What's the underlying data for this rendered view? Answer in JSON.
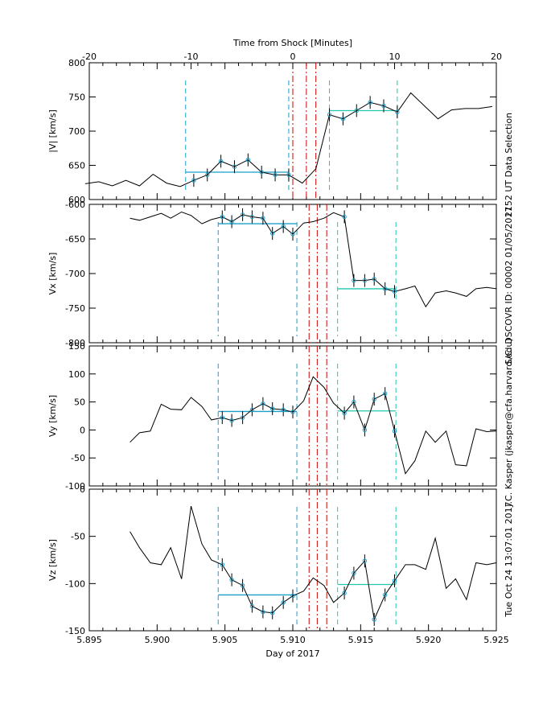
{
  "top_axis": {
    "label": "Time from Shock [Minutes]",
    "ticks": [
      -20,
      -10,
      0,
      10,
      20
    ]
  },
  "bottom_axis": {
    "label": "Day of 2017",
    "ticks": [
      "5.895",
      "5.900",
      "5.905",
      "5.910",
      "5.915",
      "5.920",
      "5.925"
    ]
  },
  "side_text": [
    "2152 UT Data Selection",
    "S/C: DSCOVR ID: 00002 01/05/2017",
    "J.C. Kasper (jkasper@cfa.harvard.edu)",
    "Tue Oct 24 13:07:01 2017"
  ],
  "colors": {
    "trace": "#000000",
    "fit_points": "#1a9fc8",
    "upstream_window": "#1a9fc8",
    "downstream_window": "#20c8b0",
    "shock_lines": "#cc0000"
  },
  "chart_data": [
    {
      "type": "line",
      "ylabel": "|V| [km/s]",
      "ylim": [
        600,
        800
      ],
      "yticks": [
        600,
        650,
        700,
        750,
        800
      ],
      "x": [
        5.8947,
        5.8957,
        5.8967,
        5.8977,
        5.8987,
        5.8997,
        5.9007,
        5.9017,
        5.9027,
        5.9037,
        5.9047,
        5.9057,
        5.9067,
        5.9077,
        5.9087,
        5.9097,
        5.9107,
        5.9117,
        5.9127,
        5.9137,
        5.9147,
        5.9157,
        5.9167,
        5.9177,
        5.9187,
        5.9197,
        5.9207,
        5.9217,
        5.9227,
        5.9237,
        5.9247
      ],
      "values": [
        623,
        626,
        620,
        628,
        620,
        637,
        624,
        619,
        628,
        636,
        656,
        648,
        658,
        640,
        636,
        636,
        624,
        645,
        724,
        718,
        730,
        742,
        737,
        728,
        756,
        737,
        718,
        731,
        733,
        733,
        736
      ],
      "shock_lines_x": [
        5.91,
        5.911,
        5.9117
      ],
      "upstream_window": {
        "x_start": 5.9021,
        "x_end": 5.9097,
        "mean": 640
      },
      "downstream_window": {
        "x_start": 5.9127,
        "x_end": 5.9177,
        "mean": 730
      }
    },
    {
      "type": "line",
      "ylabel": "Vx [km/s]",
      "ylim": [
        -800,
        -600
      ],
      "yticks": [
        -800,
        -750,
        -700,
        -650,
        -600
      ],
      "x": [
        5.898,
        5.8987,
        5.8995,
        5.9003,
        5.901,
        5.9018,
        5.9025,
        5.9033,
        5.904,
        5.9048,
        5.9055,
        5.9063,
        5.907,
        5.9078,
        5.9085,
        5.9093,
        5.91,
        5.9108,
        5.9115,
        5.9123,
        5.913,
        5.9138,
        5.9145,
        5.9153,
        5.916,
        5.9168,
        5.9175,
        5.9183,
        5.919,
        5.9198,
        5.9205,
        5.9213,
        5.922,
        5.9228,
        5.9235,
        5.9243,
        5.925
      ],
      "values": [
        -620,
        -623,
        -618,
        -613,
        -620,
        -611,
        -616,
        -628,
        -622,
        -618,
        -625,
        -615,
        -618,
        -620,
        -642,
        -632,
        -643,
        -627,
        -625,
        -620,
        -612,
        -618,
        -710,
        -710,
        -708,
        -722,
        -726,
        -722,
        -718,
        -748,
        -728,
        -725,
        -728,
        -733,
        -722,
        -720,
        -722
      ],
      "shock_lines_x": [
        5.9112,
        5.9118,
        5.9125
      ],
      "upstream_window": {
        "x_start": 5.9045,
        "x_end": 5.9103,
        "mean": -628
      },
      "downstream_window": {
        "x_start": 5.9133,
        "x_end": 5.9176,
        "mean": -722
      }
    },
    {
      "type": "line",
      "ylabel": "Vy [km/s]",
      "ylim": [
        -100,
        150
      ],
      "yticks": [
        -100,
        -50,
        0,
        50,
        100,
        150
      ],
      "x": [
        5.898,
        5.8987,
        5.8995,
        5.9003,
        5.901,
        5.9018,
        5.9025,
        5.9033,
        5.904,
        5.9048,
        5.9055,
        5.9063,
        5.907,
        5.9078,
        5.9085,
        5.9093,
        5.91,
        5.9108,
        5.9115,
        5.9123,
        5.913,
        5.9138,
        5.9145,
        5.9153,
        5.916,
        5.9168,
        5.9175,
        5.9183,
        5.919,
        5.9198,
        5.9205,
        5.9213,
        5.922,
        5.9228,
        5.9235,
        5.9243,
        5.925
      ],
      "values": [
        -22,
        -5,
        -2,
        46,
        37,
        36,
        58,
        42,
        18,
        22,
        17,
        22,
        36,
        47,
        38,
        36,
        32,
        52,
        95,
        76,
        48,
        30,
        50,
        0,
        55,
        65,
        -2,
        -78,
        -55,
        -2,
        -22,
        -2,
        -62,
        -64,
        2,
        -3,
        -2
      ],
      "shock_lines_x": [
        5.9112,
        5.9118,
        5.9125
      ],
      "upstream_window": {
        "x_start": 5.9045,
        "x_end": 5.9103,
        "mean": 33
      },
      "downstream_window": {
        "x_start": 5.9133,
        "x_end": 5.9176,
        "mean": 34
      }
    },
    {
      "type": "line",
      "ylabel": "Vz [km/s]",
      "ylim": [
        -150,
        0
      ],
      "yticks": [
        -150,
        -100,
        -50,
        0
      ],
      "x": [
        5.898,
        5.8987,
        5.8995,
        5.9003,
        5.901,
        5.9018,
        5.9025,
        5.9033,
        5.904,
        5.9048,
        5.9055,
        5.9063,
        5.907,
        5.9078,
        5.9085,
        5.9093,
        5.91,
        5.9108,
        5.9115,
        5.9123,
        5.913,
        5.9138,
        5.9145,
        5.9153,
        5.916,
        5.9168,
        5.9175,
        5.9183,
        5.919,
        5.9198,
        5.9205,
        5.9213,
        5.922,
        5.9228,
        5.9235,
        5.9243,
        5.925
      ],
      "values": [
        -45,
        -62,
        -78,
        -80,
        -62,
        -95,
        -18,
        -58,
        -75,
        -80,
        -96,
        -102,
        -124,
        -130,
        -131,
        -120,
        -113,
        -108,
        -94,
        -102,
        -120,
        -110,
        -89,
        -76,
        -138,
        -112,
        -97,
        -80,
        -80,
        -85,
        -52,
        -105,
        -95,
        -117,
        -78,
        -80,
        -78
      ],
      "shock_lines_x": [
        5.9112,
        5.9118,
        5.9125
      ],
      "upstream_window": {
        "x_start": 5.9045,
        "x_end": 5.9103,
        "mean": -112
      },
      "downstream_window": {
        "x_start": 5.9133,
        "x_end": 5.9176,
        "mean": -101
      }
    }
  ]
}
